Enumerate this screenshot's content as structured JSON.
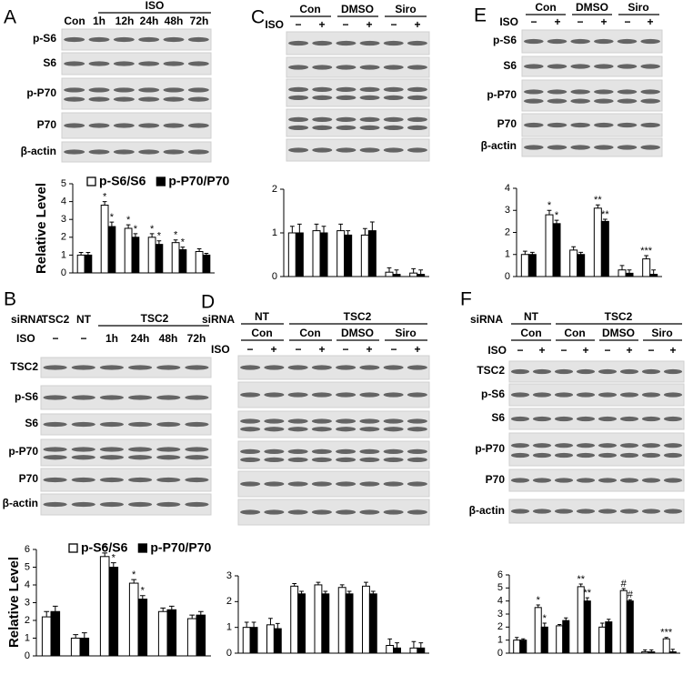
{
  "figure": {
    "A": {
      "letter": "A",
      "iso": "ISO",
      "lanes": [
        "Con",
        "1h",
        "12h",
        "24h",
        "48h",
        "72h"
      ],
      "rows": [
        "p-S6",
        "S6",
        "p-P70",
        "P70",
        "β-actin"
      ]
    },
    "C": {
      "letter": "C",
      "iso": "ISO",
      "groups": [
        "Con",
        "DMSO",
        "Siro"
      ],
      "treatment": [
        "−",
        "+",
        "−",
        "+",
        "−",
        "+"
      ]
    },
    "E": {
      "letter": "E",
      "iso": "ISO",
      "groups": [
        "Con",
        "DMSO",
        "Siro"
      ],
      "treatment": [
        "−",
        "+",
        "−",
        "+",
        "−",
        "+"
      ],
      "rows": [
        "p-S6",
        "S6",
        "p-P70",
        "P70",
        "β-actin"
      ]
    },
    "B": {
      "letter": "B",
      "sirna": "siRNA",
      "sirna_groups": [
        "TSC2",
        "NT",
        "TSC2"
      ],
      "iso": "ISO",
      "lanes": [
        "−",
        "−",
        "1h",
        "24h",
        "48h",
        "72h"
      ],
      "rows": [
        "TSC2",
        "p-S6",
        "S6",
        "p-P70",
        "P70",
        "β-actin"
      ]
    },
    "D": {
      "letter": "D",
      "sirna": "siRNA",
      "sirna_groups": [
        "NT",
        "TSC2"
      ],
      "groups": [
        "Con",
        "Con",
        "DMSO",
        "Siro"
      ],
      "iso": "ISO",
      "treatment": [
        "−",
        "+",
        "−",
        "+",
        "−",
        "+",
        "−",
        "+"
      ]
    },
    "F": {
      "letter": "F",
      "sirna": "siRNA",
      "sirna_groups": [
        "NT",
        "TSC2"
      ],
      "groups": [
        "Con",
        "Con",
        "DMSO",
        "Siro"
      ],
      "iso": "ISO",
      "treatment": [
        "−",
        "+",
        "−",
        "+",
        "−",
        "+",
        "−",
        "+"
      ],
      "rows": [
        "TSC2",
        "p-S6",
        "S6",
        "p-P70",
        "P70",
        "β-actin"
      ]
    }
  },
  "chart_data": [
    {
      "type": "bar",
      "y_label": "Relative  Level",
      "categories": [
        null,
        null,
        null,
        null,
        null,
        null
      ],
      "ylim": [
        0,
        5
      ],
      "yticks": [
        0,
        1,
        2,
        3,
        4,
        5
      ],
      "series": [
        {
          "name": "p-S6/S6",
          "color": "#ffffff",
          "values": [
            1.0,
            3.8,
            2.5,
            2.0,
            1.7,
            1.2
          ],
          "errors": [
            0.15,
            0.2,
            0.2,
            0.2,
            0.15,
            0.15
          ],
          "annotations": [
            null,
            "*",
            "*",
            "*",
            "*",
            null
          ]
        },
        {
          "name": "p-P70/P70",
          "color": "#000000",
          "values": [
            1.0,
            2.6,
            2.0,
            1.6,
            1.3,
            1.0
          ],
          "errors": [
            0.15,
            0.25,
            0.2,
            0.2,
            0.15,
            0.1
          ],
          "annotations": [
            null,
            "*",
            "*",
            "*",
            "*",
            null
          ]
        }
      ]
    },
    {
      "type": "bar",
      "categories": [
        null,
        null,
        null,
        null,
        null,
        null
      ],
      "ylim": [
        0,
        2
      ],
      "yticks": [
        0,
        1,
        2
      ],
      "series": [
        {
          "color": "#ffffff",
          "values": [
            1.0,
            1.05,
            1.05,
            0.95,
            0.1,
            0.08
          ],
          "errors": [
            0.15,
            0.15,
            0.15,
            0.15,
            0.1,
            0.1
          ]
        },
        {
          "color": "#000000",
          "values": [
            1.0,
            1.0,
            0.95,
            1.05,
            0.05,
            0.05
          ],
          "errors": [
            0.2,
            0.15,
            0.1,
            0.2,
            0.1,
            0.1
          ]
        }
      ]
    },
    {
      "type": "bar",
      "categories": [
        null,
        null,
        null,
        null,
        null,
        null
      ],
      "ylim": [
        0,
        4
      ],
      "yticks": [
        0,
        1,
        2,
        3,
        4
      ],
      "series": [
        {
          "color": "#ffffff",
          "values": [
            1.0,
            2.8,
            1.2,
            3.1,
            0.3,
            0.8
          ],
          "errors": [
            0.15,
            0.2,
            0.15,
            0.15,
            0.2,
            0.15
          ],
          "annotations": [
            null,
            "*",
            null,
            "**",
            null,
            "***"
          ]
        },
        {
          "color": "#000000",
          "values": [
            1.0,
            2.4,
            1.0,
            2.5,
            0.15,
            0.1
          ],
          "errors": [
            0.1,
            0.15,
            0.1,
            0.1,
            0.15,
            0.2
          ],
          "annotations": [
            null,
            "*",
            null,
            "**",
            null,
            null
          ]
        }
      ]
    },
    {
      "type": "bar",
      "y_label": "Relative  Level",
      "categories": [
        null,
        null,
        null,
        null,
        null,
        null
      ],
      "ylim": [
        0,
        6
      ],
      "yticks": [
        0,
        1,
        2,
        3,
        4,
        5,
        6
      ],
      "series": [
        {
          "name": "p-S6/S6",
          "color": "#ffffff",
          "values": [
            2.2,
            1.0,
            5.6,
            4.1,
            2.5,
            2.1
          ],
          "errors": [
            0.3,
            0.2,
            0.2,
            0.2,
            0.2,
            0.2
          ],
          "annotations": [
            null,
            null,
            "*",
            "*",
            null,
            null
          ]
        },
        {
          "name": "p-P70/P70",
          "color": "#000000",
          "values": [
            2.5,
            1.0,
            5.0,
            3.2,
            2.6,
            2.3
          ],
          "errors": [
            0.3,
            0.3,
            0.25,
            0.2,
            0.2,
            0.2
          ],
          "annotations": [
            null,
            null,
            "*",
            "*",
            null,
            null
          ]
        }
      ]
    },
    {
      "type": "bar",
      "categories": [
        null,
        null,
        null,
        null,
        null,
        null,
        null,
        null
      ],
      "ylim": [
        0,
        3
      ],
      "yticks": [
        0,
        1,
        2,
        3
      ],
      "series": [
        {
          "color": "#ffffff",
          "values": [
            1.0,
            1.1,
            2.6,
            2.65,
            2.55,
            2.6,
            0.3,
            0.2
          ],
          "errors": [
            0.2,
            0.25,
            0.1,
            0.1,
            0.1,
            0.15,
            0.25,
            0.25
          ]
        },
        {
          "color": "#000000",
          "values": [
            1.0,
            0.95,
            2.3,
            2.3,
            2.3,
            2.3,
            0.2,
            0.2
          ],
          "errors": [
            0.2,
            0.2,
            0.1,
            0.1,
            0.1,
            0.1,
            0.2,
            0.2
          ]
        }
      ]
    },
    {
      "type": "bar",
      "categories": [
        null,
        null,
        null,
        null,
        null,
        null,
        null,
        null
      ],
      "ylim": [
        0,
        6
      ],
      "yticks": [
        0,
        1,
        2,
        3,
        4,
        5,
        6
      ],
      "series": [
        {
          "color": "#ffffff",
          "values": [
            1.0,
            3.5,
            2.1,
            5.1,
            2.0,
            4.8,
            0.1,
            1.1
          ],
          "errors": [
            0.2,
            0.2,
            0.1,
            0.2,
            0.3,
            0.15,
            0.15,
            0.1
          ],
          "annotations": [
            null,
            "*",
            null,
            "**",
            null,
            "#",
            null,
            "***"
          ]
        },
        {
          "color": "#000000",
          "values": [
            1.0,
            2.0,
            2.5,
            4.0,
            2.4,
            4.0,
            0.1,
            0.1
          ],
          "errors": [
            0.1,
            0.3,
            0.2,
            0.25,
            0.2,
            0.1,
            0.15,
            0.2
          ],
          "annotations": [
            null,
            "*",
            null,
            "**",
            null,
            "#",
            null,
            null
          ]
        }
      ]
    }
  ]
}
